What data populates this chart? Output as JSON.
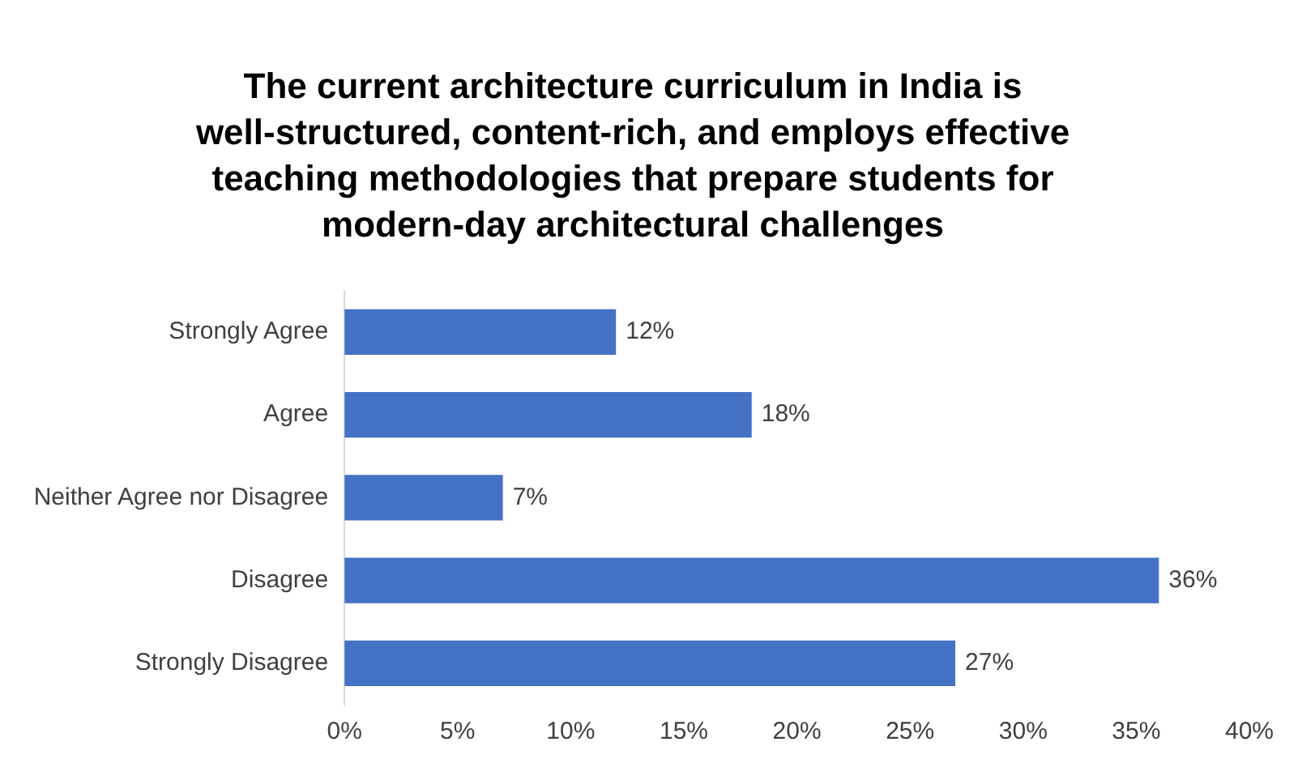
{
  "chart_data": {
    "type": "bar",
    "orientation": "horizontal",
    "title": "The current architecture curriculum in India is well-structured, content-rich, and employs effective teaching methodologies that prepare students for modern-day architectural challenges",
    "categories": [
      "Strongly Agree",
      "Agree",
      "Neither Agree nor Disagree",
      "Disagree",
      "Strongly Disagree"
    ],
    "values": [
      12,
      18,
      7,
      36,
      27
    ],
    "value_labels": [
      "12%",
      "18%",
      "7%",
      "36%",
      "27%"
    ],
    "color": "#4472c4",
    "xlim": [
      0,
      40
    ],
    "xticks": [
      {
        "value": 0,
        "label": "0%"
      },
      {
        "value": 5,
        "label": "5%"
      },
      {
        "value": 10,
        "label": "10%"
      },
      {
        "value": 15,
        "label": "15%"
      },
      {
        "value": 20,
        "label": "20%"
      },
      {
        "value": 25,
        "label": "25%"
      },
      {
        "value": 30,
        "label": "30%"
      },
      {
        "value": 35,
        "label": "35%"
      },
      {
        "value": 40,
        "label": "40%"
      }
    ],
    "grid": false,
    "legend": false
  }
}
